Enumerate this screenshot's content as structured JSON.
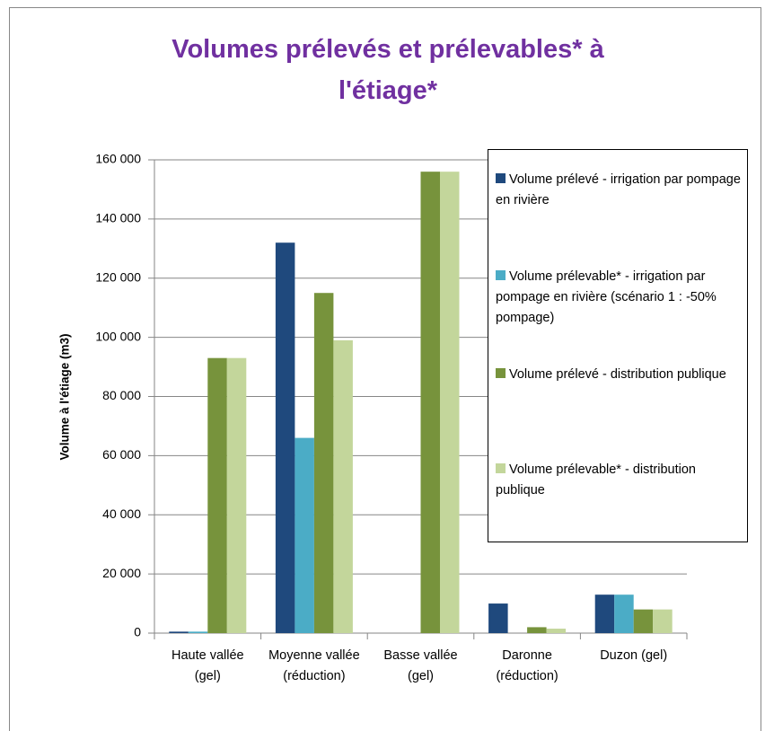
{
  "chart_data": {
    "type": "bar",
    "title": "Volumes prélevés et prélevables* à l'étiage*",
    "y_label": "Volume à l'étiage (m3)",
    "categories": [
      "Haute vallée (gel)",
      "Moyenne vallée (réduction)",
      "Basse vallée (gel)",
      "Daronne (réduction)",
      "Duzon (gel)"
    ],
    "series": [
      {
        "name": "Volume prélevé - irrigation par pompage en rivière",
        "color": "#1f497d",
        "values": [
          500,
          132000,
          0,
          10000,
          13000
        ]
      },
      {
        "name": "Volume prélevable* - irrigation par pompage en rivière (scénario 1 : -50% pompage)",
        "color": "#4bacc6",
        "values": [
          500,
          66000,
          0,
          0,
          13000
        ]
      },
      {
        "name": "Volume prélevé - distribution publique",
        "color": "#77933c",
        "values": [
          93000,
          115000,
          156000,
          2000,
          8000
        ]
      },
      {
        "name": "Volume prélevable* - distribution publique",
        "color": "#c3d69b",
        "values": [
          93000,
          99000,
          156000,
          1500,
          8000
        ]
      }
    ],
    "ylim": [
      0,
      160000
    ],
    "yticks": [
      0,
      {
        "value": 20000,
        "label": "20 000"
      },
      {
        "value": 40000,
        "label": "40 000"
      },
      {
        "value": 60000,
        "label": "60 000"
      },
      {
        "value": 80000,
        "label": "80 000"
      },
      {
        "value": 100000,
        "label": "100 000"
      },
      {
        "value": 120000,
        "label": "120 000"
      },
      {
        "value": 140000,
        "label": "140 000"
      },
      {
        "value": 160000,
        "label": "160 000"
      }
    ],
    "grid": true,
    "legend": "right"
  }
}
